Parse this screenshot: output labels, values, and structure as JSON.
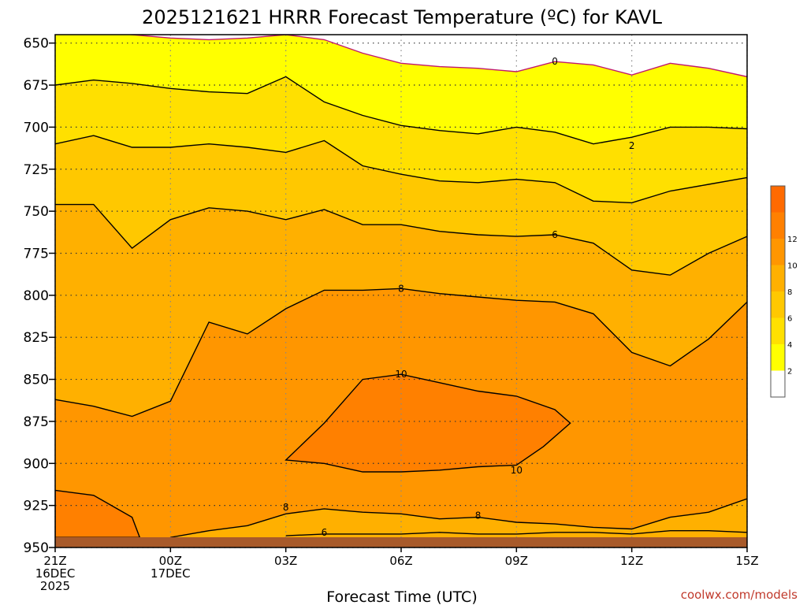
{
  "chart_data": {
    "type": "heatmap",
    "title": "2025121621 HRRR Forecast Temperature (ºC) for KAVL",
    "xlabel": "Forecast Time (UTC)",
    "ylabel": "",
    "credit": "coolwx.com/models",
    "y_ticks": [
      "650",
      "675",
      "700",
      "725",
      "750",
      "775",
      "800",
      "825",
      "850",
      "875",
      "900",
      "925",
      "950"
    ],
    "y_range_hPa": [
      645,
      950
    ],
    "x_range_hours_from_21Z": [
      0,
      18
    ],
    "x_ticks": [
      {
        "hour": 0,
        "lines": [
          "21Z",
          "16DEC",
          "2025"
        ]
      },
      {
        "hour": 3,
        "lines": [
          "00Z",
          "17DEC"
        ]
      },
      {
        "hour": 6,
        "lines": [
          "03Z"
        ]
      },
      {
        "hour": 9,
        "lines": [
          "06Z"
        ]
      },
      {
        "hour": 12,
        "lines": [
          "09Z"
        ]
      },
      {
        "hour": 15,
        "lines": [
          "12Z"
        ]
      },
      {
        "hour": 18,
        "lines": [
          "15Z"
        ]
      }
    ],
    "surface_pressure_hPa": 944,
    "contours": [
      {
        "level": 0,
        "hours": [
          0,
          1,
          2,
          3,
          4,
          5,
          6,
          7,
          8,
          9,
          10,
          11,
          12,
          13,
          14,
          15,
          16,
          17,
          18
        ],
        "pressure_hPa": [
          641,
          643,
          645,
          647,
          648,
          647,
          645,
          648,
          656,
          662,
          664,
          665,
          667,
          661,
          663,
          669,
          662,
          665,
          670
        ]
      },
      {
        "level": 2,
        "hours": [
          0,
          1,
          2,
          3,
          4,
          5,
          6,
          7,
          8,
          9,
          10,
          11,
          12,
          13,
          14,
          15,
          16,
          17,
          18
        ],
        "pressure_hPa": [
          675,
          672,
          674,
          677,
          679,
          680,
          670,
          685,
          693,
          699,
          702,
          704,
          700,
          703,
          710,
          706,
          700,
          700,
          701
        ]
      },
      {
        "level": 4,
        "hours": [
          0,
          1,
          2,
          3,
          4,
          5,
          6,
          7,
          8,
          9,
          10,
          11,
          12,
          13,
          14,
          15,
          16,
          17,
          18
        ],
        "pressure_hPa": [
          710,
          705,
          712,
          712,
          710,
          712,
          715,
          708,
          723,
          728,
          732,
          733,
          731,
          733,
          744,
          745,
          738,
          734,
          730
        ]
      },
      {
        "level": 6,
        "hours": [
          0,
          1,
          2,
          3,
          4,
          5,
          6,
          7,
          8,
          9,
          10,
          11,
          12,
          13,
          14,
          15,
          16,
          17,
          18
        ],
        "pressure_hPa": [
          746,
          746,
          772,
          755,
          748,
          750,
          755,
          749,
          758,
          758,
          762,
          764,
          765,
          764,
          769,
          785,
          788,
          775,
          765
        ]
      },
      {
        "level": 8,
        "hours": [
          0,
          1,
          2,
          3,
          4,
          5,
          6,
          7,
          8,
          9,
          10,
          11,
          12,
          13,
          14,
          15,
          16,
          17,
          18
        ],
        "pressure_hPa": [
          862,
          866,
          872,
          863,
          816,
          823,
          808,
          797,
          797,
          796,
          799,
          801,
          803,
          804,
          811,
          834,
          842,
          826,
          804
        ]
      },
      {
        "level": 10,
        "hours": [
          6,
          7,
          8,
          9,
          10,
          11,
          12,
          13,
          13.4,
          12.7,
          12,
          11,
          10,
          9,
          8,
          7,
          6
        ],
        "pressure_hPa": [
          898,
          876,
          850,
          847,
          852,
          857,
          860,
          868,
          876,
          890,
          901,
          902,
          904,
          905,
          905,
          900,
          898
        ]
      },
      {
        "level": 10,
        "hours": [
          0,
          1,
          2,
          2.2,
          0
        ],
        "pressure_hPa": [
          916,
          919,
          932,
          944,
          944
        ]
      },
      {
        "level": 8,
        "hours": [
          3,
          4,
          5,
          6,
          7,
          8,
          9,
          10,
          11,
          12,
          13,
          14,
          15,
          16,
          17,
          18
        ],
        "pressure_hPa": [
          944,
          940,
          937,
          930,
          927,
          929,
          930,
          933,
          932,
          935,
          936,
          938,
          939,
          932,
          929,
          921
        ]
      },
      {
        "level": 6,
        "hours": [
          6,
          7,
          8,
          9,
          10,
          11,
          12,
          13,
          14,
          15,
          16,
          17,
          18
        ],
        "pressure_hPa": [
          943,
          942,
          942,
          942,
          941,
          942,
          942,
          941,
          941,
          942,
          940,
          940,
          941
        ]
      }
    ],
    "contour_labels": [
      {
        "text": "0",
        "hour": 13,
        "pressure_hPa": 661
      },
      {
        "text": "2",
        "hour": 15,
        "pressure_hPa": 711
      },
      {
        "text": "6",
        "hour": 13,
        "pressure_hPa": 764
      },
      {
        "text": "8",
        "hour": 9,
        "pressure_hPa": 796
      },
      {
        "text": "10",
        "hour": 9,
        "pressure_hPa": 847
      },
      {
        "text": "10",
        "hour": 12,
        "pressure_hPa": 904
      },
      {
        "text": "8",
        "hour": 6,
        "pressure_hPa": 926
      },
      {
        "text": "8",
        "hour": 11,
        "pressure_hPa": 931
      },
      {
        "text": "6",
        "hour": 7,
        "pressure_hPa": 941
      }
    ],
    "colorbar": {
      "ticks": [
        "2",
        "4",
        "6",
        "8",
        "10",
        "12"
      ],
      "colors": [
        "#ffffff",
        "#ffff00",
        "#ffe000",
        "#ffc800",
        "#ffb000",
        "#ff9600",
        "#ff8000",
        "#ff6a00"
      ]
    },
    "colors": {
      "zero_line": "#c0186e",
      "contour": "#000000",
      "ground": "#a85a2a",
      "credit": "#c0392b"
    }
  }
}
